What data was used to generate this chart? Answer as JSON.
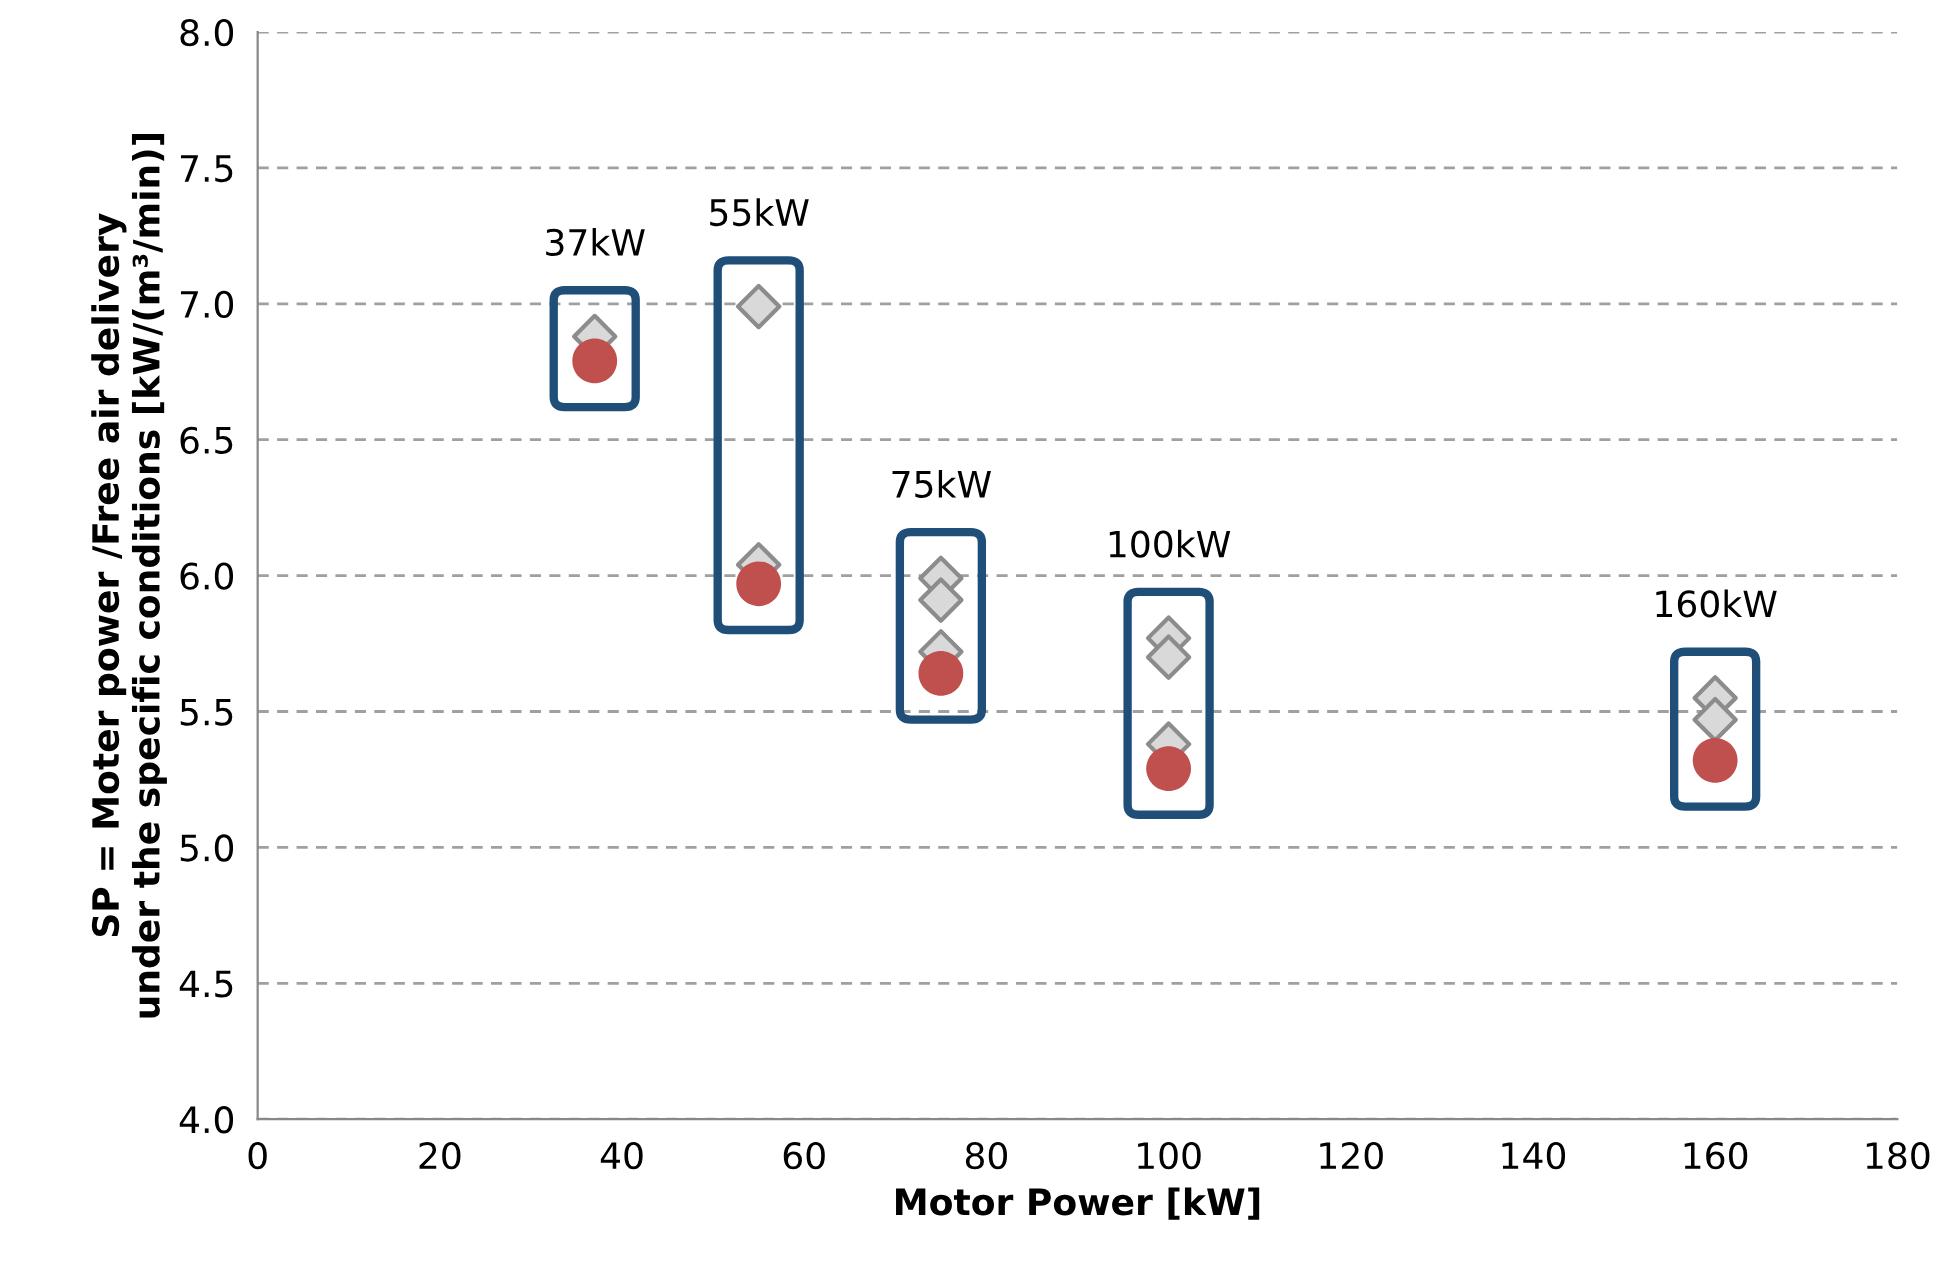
{
  "chart_data": {
    "type": "scatter",
    "xlabel": "Motor Power [kW]",
    "ylabel": "SP = Moter power /Free air delivery\nunder the specific conditions [kW/(m³/min)]",
    "xlim": [
      0,
      180
    ],
    "xticks": [
      0,
      20,
      40,
      60,
      80,
      100,
      120,
      140,
      160,
      180
    ],
    "ylim": [
      4.0,
      8.0
    ],
    "yticks": [
      {
        "value": 4.0,
        "label": "4.0"
      },
      {
        "value": 4.5,
        "label": "4.5"
      },
      {
        "value": 5.0,
        "label": "5.0"
      },
      {
        "value": 5.5,
        "label": "5.5"
      },
      {
        "value": 6.0,
        "label": "6.0"
      },
      {
        "value": 6.5,
        "label": "6.5"
      },
      {
        "value": 7.0,
        "label": "7.0"
      },
      {
        "value": 7.5,
        "label": "7.5"
      },
      {
        "value": 8.0,
        "label": "8.0"
      }
    ],
    "grid": "y",
    "series": [
      {
        "color": "#d9d9d9",
        "marker": "diamond",
        "x": [
          37,
          55,
          55,
          75,
          75,
          75,
          100,
          100,
          100,
          160,
          160
        ],
        "values": [
          6.88,
          6.99,
          6.04,
          5.99,
          5.91,
          5.72,
          5.77,
          5.7,
          5.38,
          5.55,
          5.47
        ]
      },
      {
        "color": "#c0504d",
        "marker": "circle",
        "x": [
          37,
          55,
          75,
          100,
          160
        ],
        "values": [
          6.79,
          5.97,
          5.64,
          5.29,
          5.32
        ]
      }
    ],
    "annotations": [
      "37kW",
      "55kW",
      "75kW",
      "100kW",
      "160kW"
    ]
  }
}
